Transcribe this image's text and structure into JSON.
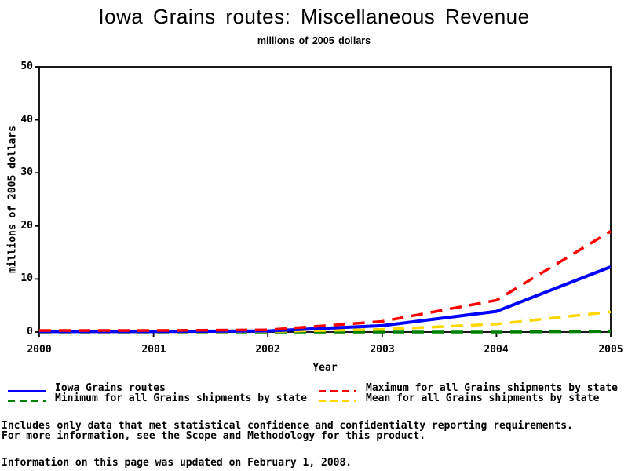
{
  "page": {
    "title": "Iowa Grains routes: Miscellaneous Revenue",
    "subtitle": "millions of 2005 dollars"
  },
  "footer": {
    "note_line1": "Includes only data that met statistical confidence and confidentialty reporting requirements.",
    "note_line2": "For more information, see the Scope and Methodology for this product.",
    "updated": "Information on this page was updated on February 1, 2008."
  },
  "chart_data": {
    "type": "line",
    "title": "Iowa Grains routes: Miscellaneous Revenue",
    "subtitle": "millions of 2005 dollars",
    "xlabel": "Year",
    "ylabel": "millions of 2005 dollars",
    "x": [
      2000,
      2001,
      2002,
      2003,
      2004,
      2005
    ],
    "xtick_labels": [
      "2000",
      "2001",
      "2002",
      "2003",
      "2004",
      "2005"
    ],
    "yticks": [
      0,
      10,
      20,
      30,
      40,
      50
    ],
    "ytick_labels": [
      "0",
      "10",
      "20",
      "30",
      "40",
      "50"
    ],
    "xlim": [
      2000,
      2005
    ],
    "ylim": [
      0,
      50
    ],
    "grid": false,
    "legend_position": "bottom",
    "axis_color": "#000000",
    "series": [
      {
        "name": "Iowa Grains routes",
        "color": "#0000ff",
        "style": "solid",
        "values": [
          0.1,
          0.1,
          0.2,
          1.2,
          3.9,
          12.3
        ]
      },
      {
        "name": "Minimum for all Grains shipments by state",
        "color": "#008000",
        "style": "dashed",
        "values": [
          0,
          0,
          0,
          0,
          0,
          0.1
        ]
      },
      {
        "name": "Maximum for all Grains shipments by state",
        "color": "#ff0000",
        "style": "dashed",
        "values": [
          0.3,
          0.3,
          0.4,
          2.0,
          6.0,
          19.0
        ]
      },
      {
        "name": "Mean for all Grains shipments by state",
        "color": "#ffd700",
        "style": "dashed",
        "values": [
          0.05,
          0.05,
          0.1,
          0.5,
          1.5,
          3.8
        ]
      }
    ]
  }
}
